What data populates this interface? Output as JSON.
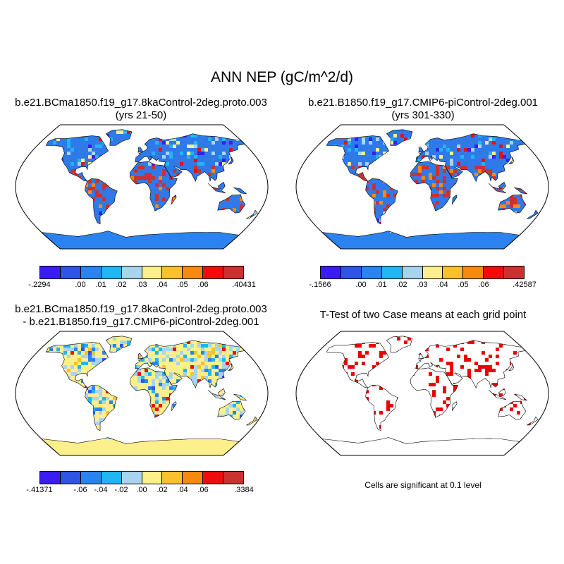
{
  "title": "ANN NEP (gC/m^2/d)",
  "panels": {
    "p1": {
      "title_line1": "b.e21.BCma1850.f19_g17.8kaControl-2deg.proto.003",
      "title_line2": "(yrs 21-50)"
    },
    "p2": {
      "title_line1": "b.e21.B1850.f19_g17.CMIP6-piControl-2deg.001",
      "title_line2": "(yrs 301-330)"
    },
    "p3": {
      "title_line1": "b.e21.BCma1850.f19_g17.8kaControl-2deg.proto.003",
      "title_line2": "- b.e21.B1850.f19_g17.CMIP6-piControl-2deg.001"
    },
    "p4": {
      "title_line1": "T-Test of two Case means at each grid point",
      "note": "Cells are significant at 0.1 level"
    }
  },
  "colorbars": {
    "cb1": {
      "colors": [
        "#3b1cf5",
        "#2f55e6",
        "#2b83ef",
        "#1fb6f2",
        "#a8d4ee",
        "#fdf08c",
        "#f9c22c",
        "#f78a0e",
        "#f10b0b",
        "#cc3131"
      ],
      "labels": [
        "-.2294",
        ".00",
        ".01",
        ".02",
        ".03",
        ".04",
        ".05",
        ".06",
        ".40431"
      ]
    },
    "cb2": {
      "colors": [
        "#3b1cf5",
        "#2f55e6",
        "#2b83ef",
        "#1fb6f2",
        "#a8d4ee",
        "#fdf08c",
        "#f9c22c",
        "#f78a0e",
        "#f10b0b",
        "#cc3131"
      ],
      "labels": [
        "-.1566",
        ".00",
        ".01",
        ".02",
        ".03",
        ".04",
        ".05",
        ".06",
        "",
        ".42587"
      ]
    },
    "cb3": {
      "colors": [
        "#3b1cf5",
        "#2f55e6",
        "#2b83ef",
        "#1fb6f2",
        "#a8d4ee",
        "#fdf08c",
        "#f9c22c",
        "#f78a0e",
        "#f10b0b",
        "#cc3131"
      ],
      "labels": [
        "-.41371",
        "-.06",
        "-.04",
        "-.02",
        ".00",
        ".02",
        ".04",
        ".06",
        ".3384"
      ]
    }
  },
  "map_colors": {
    "ocean": "#ffffff",
    "land_base_p1": "#2f7ae8",
    "land_base_p2": "#2f7ae8",
    "land_base_p3": "#fdf08c",
    "signif": "#ee0000",
    "antarctica_diff": "#fdf08c"
  }
}
